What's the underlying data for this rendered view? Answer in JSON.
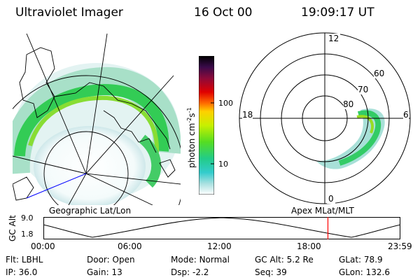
{
  "header": {
    "instrument": "Ultraviolet Imager",
    "date": "16 Oct 00",
    "time": "19:09:17 UT"
  },
  "colorbar": {
    "ticks": [
      "100",
      "10"
    ],
    "unit_prefix": "photon cm",
    "unit_exp1": "-2",
    "unit_mid": "s",
    "unit_exp2": "-1"
  },
  "left_panel": {
    "caption": "Geographic Lat/Lon"
  },
  "right_panel": {
    "caption": "Apex MLat/MLT",
    "mlt_labels": {
      "top": "12",
      "bottom": "0",
      "left": "18",
      "right": "6"
    },
    "lat_labels": [
      "60",
      "70",
      "80"
    ]
  },
  "altitude_strip": {
    "ylabel": "GC Alt",
    "y_ticks": [
      "9.0",
      "1.8"
    ],
    "x_ticks": [
      "00:00",
      "06:00",
      "12:00",
      "18:00",
      "23:59"
    ],
    "current_time_fraction": 0.797
  },
  "info": [
    {
      "label": "Flt:",
      "value": "LBHL"
    },
    {
      "label": "Door:",
      "value": "Open"
    },
    {
      "label": "Mode:",
      "value": "Normal"
    },
    {
      "label": "GC Alt:",
      "value": "5.2 Re"
    },
    {
      "label": "GLat:",
      "value": "78.9"
    },
    {
      "label": "IP:",
      "value": "36.0"
    },
    {
      "label": "Gain:",
      "value": "13"
    },
    {
      "label": "Dsp:",
      "value": "-2.2"
    },
    {
      "label": "Seq:",
      "value": "39"
    },
    {
      "label": "GLon:",
      "value": "132.6"
    }
  ],
  "colors": {
    "marker": "#ff0000",
    "track": "#0000ff"
  }
}
